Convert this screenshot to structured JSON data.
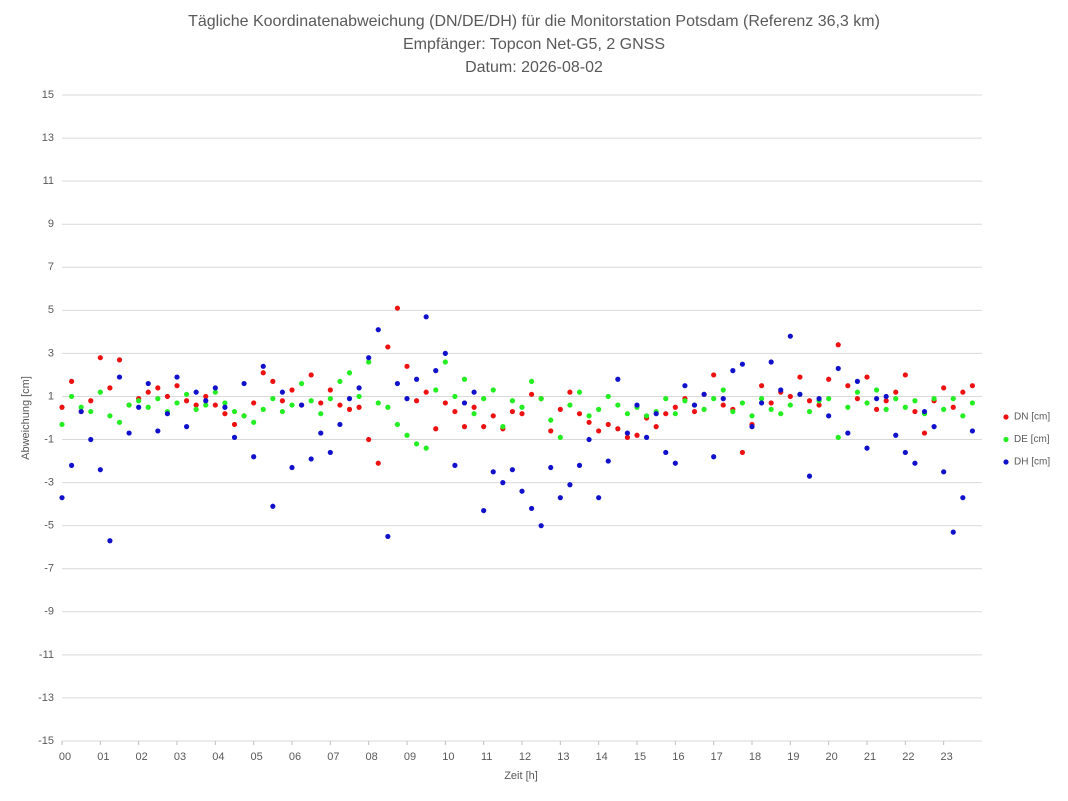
{
  "chart_data": {
    "type": "scatter",
    "title": "Tägliche Koordinatenabweichung (DN/DE/DH) für die Monitorstation Potsdam (Referenz 36,3 km)",
    "subtitle": "Empfänger: Topcon Net-G5, 2 GNSS",
    "date": "Datum: 2026-08-02",
    "x_label": "Zeit [h]",
    "y_label": "Abweichung [cm]",
    "xlim": [
      0,
      24
    ],
    "ylim": [
      -15,
      15
    ],
    "grid": true,
    "legend": "right",
    "xticks": [
      {
        "value": 0,
        "label": "00"
      },
      {
        "value": 1,
        "label": "01"
      },
      {
        "value": 2,
        "label": "02"
      },
      {
        "value": 3,
        "label": "03"
      },
      {
        "value": 4,
        "label": "04"
      },
      {
        "value": 5,
        "label": "05"
      },
      {
        "value": 6,
        "label": "06"
      },
      {
        "value": 7,
        "label": "07"
      },
      {
        "value": 8,
        "label": "08"
      },
      {
        "value": 9,
        "label": "09"
      },
      10,
      11,
      12,
      13,
      14,
      15,
      16,
      17,
      18,
      19,
      20,
      21,
      22,
      23
    ],
    "yticks": [
      -15,
      -13,
      -11,
      -9,
      -7,
      -5,
      -3,
      -1,
      1,
      3,
      5,
      7,
      9,
      11,
      13,
      15
    ],
    "x": [
      0,
      0.25,
      0.5,
      0.75,
      1,
      1.25,
      1.5,
      1.75,
      2,
      2.25,
      2.5,
      2.75,
      3,
      3.25,
      3.5,
      3.75,
      4,
      4.25,
      4.5,
      4.75,
      5,
      5.25,
      5.5,
      5.75,
      6,
      6.25,
      6.5,
      6.75,
      7,
      7.25,
      7.5,
      7.75,
      8,
      8.25,
      8.5,
      8.75,
      9,
      9.25,
      9.5,
      9.75,
      10,
      10.25,
      10.5,
      10.75,
      11,
      11.25,
      11.5,
      11.75,
      12,
      12.25,
      12.5,
      12.75,
      13,
      13.25,
      13.5,
      13.75,
      14,
      14.25,
      14.5,
      14.75,
      15,
      15.25,
      15.5,
      15.75,
      16,
      16.25,
      16.5,
      16.75,
      17,
      17.25,
      17.5,
      17.75,
      18,
      18.25,
      18.5,
      18.75,
      19,
      19.25,
      19.5,
      19.75,
      20,
      20.25,
      20.5,
      20.75,
      21,
      21.25,
      21.5,
      21.75,
      22,
      22.25,
      22.5,
      22.75,
      23,
      23.25,
      23.5,
      23.75
    ],
    "series": [
      {
        "name": "DN [cm]",
        "color": "#ee1111",
        "values": [
          0.5,
          1.7,
          0.3,
          0.8,
          2.8,
          1.4,
          2.7,
          0.6,
          0.9,
          1.2,
          1.4,
          1.0,
          1.5,
          0.8,
          0.6,
          1.0,
          0.6,
          0.2,
          -0.3,
          0.1,
          0.7,
          2.1,
          1.7,
          0.8,
          1.3,
          0.6,
          2.0,
          0.7,
          1.3,
          0.6,
          0.4,
          0.5,
          -1.0,
          -2.1,
          3.3,
          5.1,
          2.4,
          0.8,
          1.2,
          -0.5,
          0.7,
          0.3,
          -0.4,
          0.5,
          -0.4,
          0.1,
          -0.5,
          0.3,
          0.2,
          1.1,
          0.9,
          -0.6,
          0.4,
          1.2,
          0.2,
          -0.2,
          -0.6,
          -0.3,
          -0.5,
          -0.9,
          -0.8,
          0.0,
          -0.4,
          0.2,
          0.5,
          0.9,
          0.3,
          1.1,
          2.0,
          0.6,
          0.4,
          -1.6,
          -0.3,
          1.5,
          0.7,
          1.2,
          1.0,
          1.9,
          0.8,
          0.6,
          1.8,
          3.4,
          1.5,
          0.9,
          1.9,
          0.4,
          0.8,
          1.2,
          2.0,
          0.3,
          -0.7,
          0.8,
          1.4,
          0.5,
          1.2,
          1.5
        ]
      },
      {
        "name": "DE [cm]",
        "color": "#22ee22",
        "values": [
          -0.3,
          1.0,
          0.5,
          0.3,
          1.2,
          0.1,
          -0.2,
          0.6,
          0.8,
          0.5,
          0.9,
          0.3,
          0.7,
          1.1,
          0.4,
          0.6,
          1.2,
          0.7,
          0.3,
          0.1,
          -0.2,
          0.4,
          0.9,
          0.3,
          0.6,
          1.6,
          0.8,
          0.2,
          0.9,
          1.7,
          2.1,
          1.0,
          2.6,
          0.7,
          0.5,
          -0.3,
          -0.8,
          -1.2,
          -1.4,
          1.3,
          2.6,
          1.0,
          1.8,
          0.2,
          0.9,
          1.3,
          -0.4,
          0.8,
          0.5,
          1.7,
          0.9,
          -0.1,
          -0.9,
          0.6,
          1.2,
          0.1,
          0.4,
          1.0,
          0.6,
          0.2,
          0.5,
          0.1,
          0.3,
          0.9,
          0.2,
          0.8,
          0.6,
          0.4,
          0.9,
          1.3,
          0.3,
          0.7,
          0.1,
          0.9,
          0.4,
          0.2,
          0.6,
          1.1,
          0.3,
          0.8,
          0.9,
          -0.9,
          0.5,
          1.2,
          0.7,
          1.3,
          0.4,
          0.9,
          0.5,
          0.8,
          0.2,
          0.9,
          0.4,
          0.9,
          0.1,
          0.7
        ]
      },
      {
        "name": "DH [cm]",
        "color": "#1111cc",
        "values": [
          -3.7,
          -2.2,
          0.3,
          -1.0,
          -2.4,
          -5.7,
          1.9,
          -0.7,
          0.5,
          1.6,
          -0.6,
          0.2,
          1.9,
          -0.4,
          1.2,
          0.8,
          1.4,
          0.5,
          -0.9,
          1.6,
          -1.8,
          2.4,
          -4.1,
          1.2,
          -2.3,
          0.6,
          -1.9,
          -0.7,
          -1.6,
          -0.3,
          0.9,
          1.4,
          2.8,
          4.1,
          -5.5,
          1.6,
          0.9,
          1.8,
          4.7,
          2.2,
          3.0,
          -2.2,
          0.7,
          1.2,
          -4.3,
          -2.5,
          -3.0,
          -2.4,
          -3.4,
          -4.2,
          -5.0,
          -2.3,
          -3.7,
          -3.1,
          -2.2,
          -1.0,
          -3.7,
          -2.0,
          1.8,
          -0.7,
          0.6,
          -0.9,
          0.2,
          -1.6,
          -2.1,
          1.5,
          0.6,
          1.1,
          -1.8,
          0.9,
          2.2,
          2.5,
          -0.4,
          0.7,
          2.6,
          1.3,
          3.8,
          1.1,
          -2.7,
          0.9,
          0.1,
          2.3,
          -0.7,
          1.7,
          -1.4,
          0.9,
          1.0,
          -0.8,
          -1.6,
          -2.1,
          0.3,
          -0.4,
          -2.5,
          -5.3,
          -3.7,
          -0.6
        ]
      }
    ]
  }
}
